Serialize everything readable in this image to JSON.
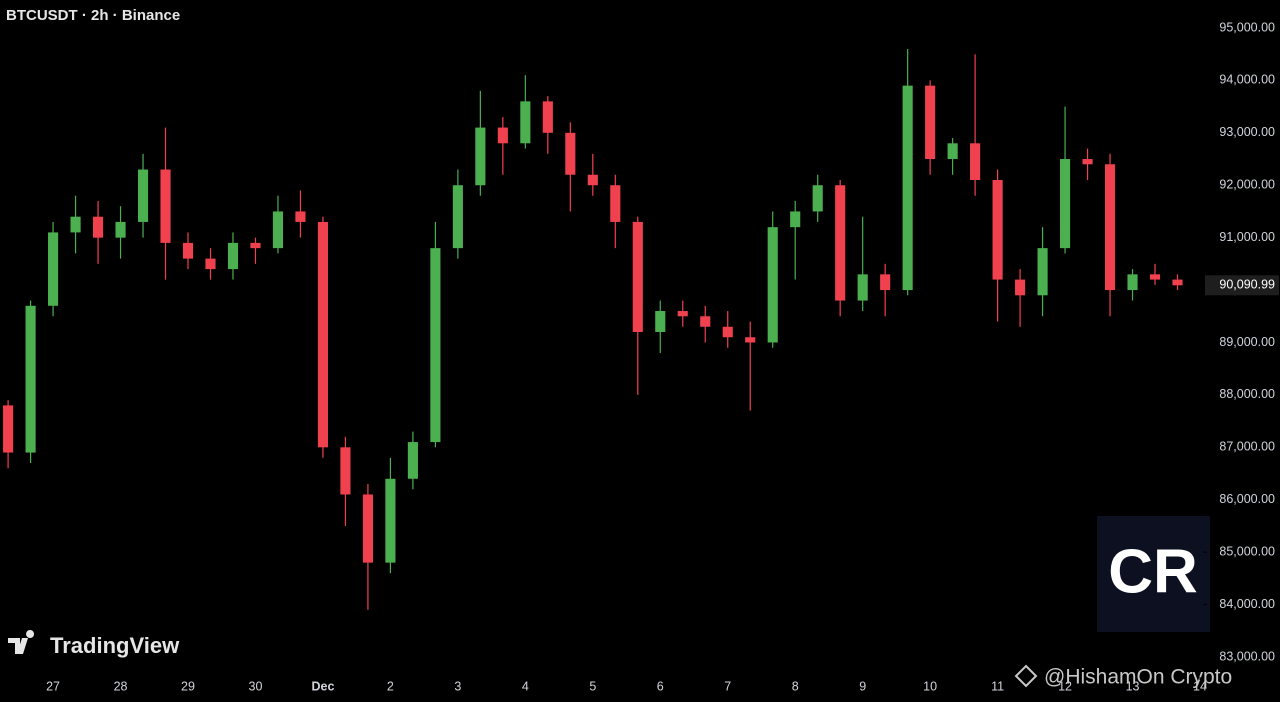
{
  "chart_data": {
    "type": "candlestick",
    "title": "BTCUSDT · 2h · Binance",
    "watermark": "TradingView",
    "credit": "@HishamOn Crypto",
    "logo_text": "CR",
    "up_color": "#4caf50",
    "down_color": "#f0414f",
    "x": [
      -2,
      -1,
      0,
      1,
      2,
      3,
      4,
      5,
      6,
      7,
      8,
      9,
      10,
      11,
      12,
      13,
      14,
      15,
      16,
      17,
      18,
      19,
      20,
      21,
      22,
      23,
      24,
      25,
      26,
      27,
      28,
      29,
      30,
      31,
      32,
      33,
      34,
      35,
      36,
      37,
      38,
      39,
      40,
      41,
      42,
      43,
      44,
      45,
      46,
      47,
      48,
      49,
      50
    ],
    "open": [
      87800,
      86900,
      89700,
      91100,
      91400,
      91000,
      91300,
      92300,
      90900,
      90600,
      90400,
      90900,
      90800,
      91500,
      91300,
      87000,
      86100,
      84800,
      86400,
      87100,
      90800,
      92000,
      93100,
      92800,
      93600,
      93000,
      92200,
      92000,
      91300,
      89200,
      89600,
      89500,
      89300,
      89100,
      89000,
      91200,
      91500,
      92000,
      89800,
      90300,
      90000,
      93900,
      92500,
      92800,
      92100,
      90200,
      89900,
      90800,
      92500,
      92400,
      90000,
      90300,
      90200
    ],
    "high": [
      87900,
      89800,
      91300,
      91800,
      91700,
      91600,
      92600,
      93100,
      91100,
      90800,
      91100,
      91000,
      91800,
      91900,
      91400,
      87200,
      86300,
      86800,
      87300,
      91300,
      92300,
      93800,
      93300,
      94100,
      93700,
      93200,
      92600,
      92200,
      91400,
      89800,
      89800,
      89700,
      89600,
      89400,
      91500,
      91700,
      92200,
      92100,
      91400,
      90500,
      94600,
      94000,
      92900,
      94500,
      92300,
      90400,
      91200,
      93500,
      92700,
      92600,
      90400,
      90500,
      90300
    ],
    "low": [
      86600,
      86700,
      89500,
      90700,
      90500,
      90600,
      91000,
      90200,
      90400,
      90200,
      90200,
      90500,
      90700,
      91000,
      86800,
      85500,
      83900,
      84600,
      86200,
      87000,
      90600,
      91800,
      92200,
      92700,
      92600,
      91500,
      91800,
      90800,
      88000,
      88800,
      89300,
      89000,
      88900,
      87700,
      88900,
      90200,
      91300,
      89500,
      89600,
      89500,
      89900,
      92200,
      92200,
      91800,
      89400,
      89300,
      89500,
      90700,
      92100,
      89500,
      89800,
      90100,
      90000
    ],
    "close": [
      86900,
      89700,
      91100,
      91400,
      91000,
      91300,
      92300,
      90900,
      90600,
      90400,
      90900,
      90800,
      91500,
      91300,
      87000,
      86100,
      84800,
      86400,
      87100,
      90800,
      92000,
      93100,
      92800,
      93600,
      93000,
      92200,
      92000,
      91300,
      89200,
      89600,
      89500,
      89300,
      89100,
      89000,
      91200,
      91500,
      92000,
      89800,
      90300,
      90000,
      93900,
      92500,
      92800,
      92100,
      90200,
      89900,
      90800,
      92500,
      92400,
      90000,
      90300,
      90200,
      90090.99
    ],
    "xlim": [
      -2.36,
      51
    ],
    "xticks": [
      {
        "value": 0,
        "label": "27"
      },
      {
        "value": 3,
        "label": "28"
      },
      {
        "value": 6,
        "label": "29"
      },
      {
        "value": 9,
        "label": "30"
      },
      {
        "value": 12,
        "label": "Dec"
      },
      {
        "value": 15,
        "label": "2"
      },
      {
        "value": 18,
        "label": "3"
      },
      {
        "value": 21,
        "label": "4"
      },
      {
        "value": 24,
        "label": "5"
      },
      {
        "value": 27,
        "label": "6"
      },
      {
        "value": 30,
        "label": "7"
      },
      {
        "value": 33,
        "label": "8"
      },
      {
        "value": 36,
        "label": "9"
      },
      {
        "value": 39,
        "label": "10"
      },
      {
        "value": 42,
        "label": "11"
      },
      {
        "value": 45,
        "label": "12"
      },
      {
        "value": 48,
        "label": "13"
      },
      {
        "value": 51,
        "label": "14"
      }
    ],
    "ylim": [
      82656,
      95534
    ],
    "yticks": [
      {
        "value": 95000,
        "label": "95,000.00"
      },
      {
        "value": 94000,
        "label": "94,000.00"
      },
      {
        "value": 93000,
        "label": "93,000.00"
      },
      {
        "value": 92000,
        "label": "92,000.00"
      },
      {
        "value": 91000,
        "label": "91,000.00"
      },
      {
        "value": 90000,
        "label": "90,000.00"
      },
      {
        "value": 89000,
        "label": "89,000.00"
      },
      {
        "value": 88000,
        "label": "88,000.00"
      },
      {
        "value": 87000,
        "label": "87,000.00"
      },
      {
        "value": 86000,
        "label": "86,000.00"
      },
      {
        "value": 85000,
        "label": "85,000.00"
      },
      {
        "value": 84000,
        "label": "84,000.00"
      },
      {
        "value": 83000,
        "label": "83,000.00"
      }
    ],
    "last_price": {
      "value": 90090.99,
      "label": "90,090.99"
    },
    "grid": false
  }
}
